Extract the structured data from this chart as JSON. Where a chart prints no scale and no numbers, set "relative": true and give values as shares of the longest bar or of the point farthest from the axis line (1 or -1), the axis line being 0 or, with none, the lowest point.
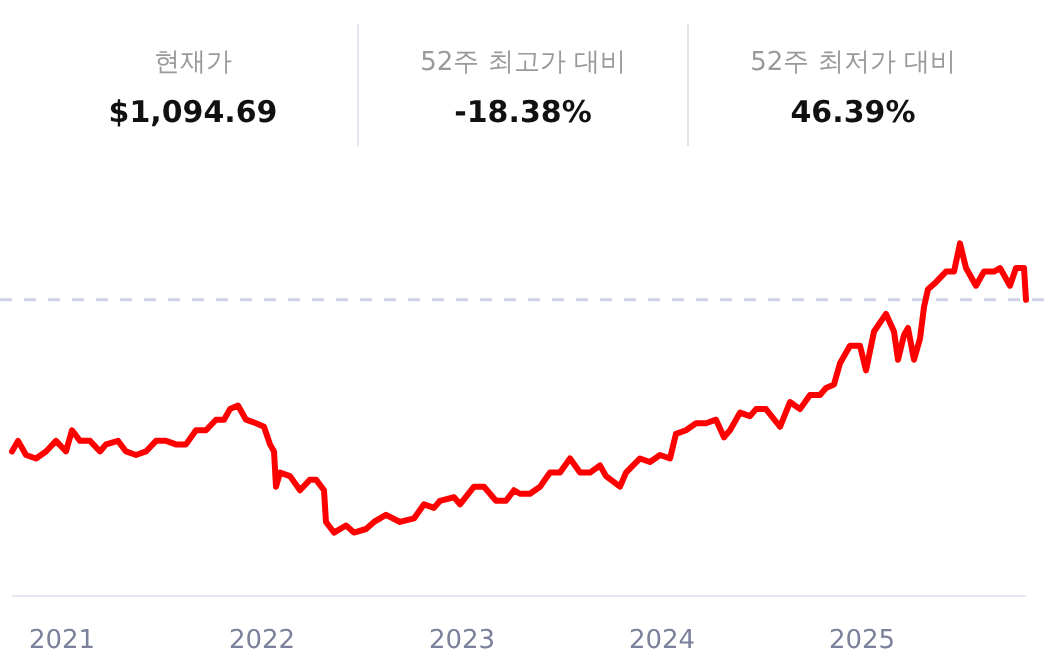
{
  "chart_data": {
    "type": "line",
    "relative": true,
    "color": "#ff0000",
    "x": [
      2020.75,
      2020.78,
      2020.82,
      2020.87,
      2020.92,
      2020.97,
      2021.02,
      2021.05,
      2021.09,
      2021.14,
      2021.19,
      2021.22,
      2021.28,
      2021.32,
      2021.37,
      2021.42,
      2021.47,
      2021.52,
      2021.57,
      2021.62,
      2021.67,
      2021.72,
      2021.77,
      2021.81,
      2021.84,
      2021.88,
      2021.92,
      2021.97,
      2022.01,
      2022.04,
      2022.06,
      2022.07,
      2022.09,
      2022.14,
      2022.19,
      2022.24,
      2022.27,
      2022.31,
      2022.32,
      2022.36,
      2022.42,
      2022.46,
      2022.52,
      2022.56,
      2022.62,
      2022.69,
      2022.76,
      2022.81,
      2022.86,
      2022.89,
      2022.96,
      2022.99,
      2023.06,
      2023.11,
      2023.17,
      2023.22,
      2023.26,
      2023.29,
      2023.34,
      2023.39,
      2023.44,
      2023.49,
      2023.54,
      2023.59,
      2023.64,
      2023.69,
      2023.72,
      2023.79,
      2023.82,
      2023.89,
      2023.94,
      2023.99,
      2024.04,
      2024.07,
      2024.12,
      2024.17,
      2024.22,
      2024.27,
      2024.31,
      2024.34,
      2024.39,
      2024.44,
      2024.47,
      2024.52,
      2024.59,
      2024.64,
      2024.69,
      2024.74,
      2024.79,
      2024.82,
      2024.86,
      2024.89,
      2024.94,
      2024.99,
      2025.02,
      2025.06,
      2025.12,
      2025.16,
      2025.18,
      2025.21,
      2025.23,
      2025.26,
      2025.29,
      2025.31,
      2025.33,
      2025.37,
      2025.42,
      2025.46,
      2025.49,
      2025.52,
      2025.57,
      2025.61,
      2025.66,
      2025.69,
      2025.74,
      2025.77,
      2025.81,
      2025.82
    ],
    "values": [
      0.41,
      0.44,
      0.4,
      0.39,
      0.41,
      0.44,
      0.41,
      0.47,
      0.44,
      0.44,
      0.41,
      0.43,
      0.44,
      0.41,
      0.4,
      0.41,
      0.44,
      0.44,
      0.43,
      0.43,
      0.47,
      0.47,
      0.5,
      0.5,
      0.53,
      0.54,
      0.5,
      0.49,
      0.48,
      0.43,
      0.41,
      0.31,
      0.35,
      0.34,
      0.3,
      0.33,
      0.33,
      0.3,
      0.21,
      0.18,
      0.2,
      0.18,
      0.19,
      0.21,
      0.23,
      0.21,
      0.22,
      0.26,
      0.25,
      0.27,
      0.28,
      0.26,
      0.31,
      0.31,
      0.27,
      0.27,
      0.3,
      0.29,
      0.29,
      0.31,
      0.35,
      0.35,
      0.39,
      0.35,
      0.35,
      0.37,
      0.34,
      0.31,
      0.35,
      0.39,
      0.38,
      0.4,
      0.39,
      0.46,
      0.47,
      0.49,
      0.49,
      0.5,
      0.45,
      0.47,
      0.52,
      0.51,
      0.53,
      0.53,
      0.48,
      0.55,
      0.53,
      0.57,
      0.57,
      0.59,
      0.6,
      0.66,
      0.71,
      0.71,
      0.64,
      0.75,
      0.8,
      0.75,
      0.67,
      0.74,
      0.76,
      0.67,
      0.73,
      0.82,
      0.87,
      0.89,
      0.92,
      0.92,
      1,
      0.93,
      0.88,
      0.92,
      0.92,
      0.93,
      0.88,
      0.93,
      0.93,
      0.84
    ],
    "xlim": [
      2020.75,
      2025.82
    ],
    "xticks": [
      2021,
      2022,
      2023,
      2024,
      2025
    ],
    "ref_lines": [
      {
        "axis": "y",
        "value": 0.84,
        "color": "#d0d2e6",
        "line_style": "dashed"
      }
    ],
    "annotations": [
      "현재가",
      "$1,094.69",
      "52주 최고가 대비",
      "-18.38%",
      "52주 최저가 대비",
      "46.39%"
    ],
    "grid": false,
    "marker": "none",
    "line_style": "solid"
  }
}
